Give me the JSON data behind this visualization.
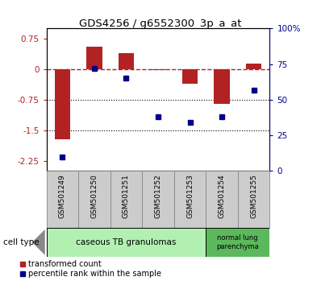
{
  "title": "GDS4256 / g6552300_3p_a_at",
  "samples": [
    "GSM501249",
    "GSM501250",
    "GSM501251",
    "GSM501252",
    "GSM501253",
    "GSM501254",
    "GSM501255"
  ],
  "red_bars": [
    -1.72,
    0.55,
    0.4,
    -0.02,
    -0.35,
    -0.85,
    0.13
  ],
  "blue_dots": [
    10,
    72,
    65,
    38,
    34,
    38,
    57
  ],
  "ylim_left": [
    -2.5,
    1.0
  ],
  "ylim_right": [
    0,
    100
  ],
  "yticks_left": [
    0.75,
    0,
    -0.75,
    -1.5,
    -2.25
  ],
  "yticks_right": [
    100,
    75,
    50,
    25,
    0
  ],
  "ytick_labels_left": [
    "0.75",
    "0",
    "-0.75",
    "-1.5",
    "-2.25"
  ],
  "ytick_labels_right": [
    "100%",
    "75",
    "50",
    "25",
    "0"
  ],
  "group1_label": "caseous TB granulomas",
  "group2_label": "normal lung\nparenchyma",
  "cell_type_label": "cell type",
  "legend_red": "transformed count",
  "legend_blue": "percentile rank within the sample",
  "bar_color": "#b22222",
  "dot_color": "#00008b",
  "group1_color": "#b2f0b2",
  "group2_color": "#5cb85c",
  "sample_box_color": "#cccccc",
  "bg_color": "#ffffff"
}
